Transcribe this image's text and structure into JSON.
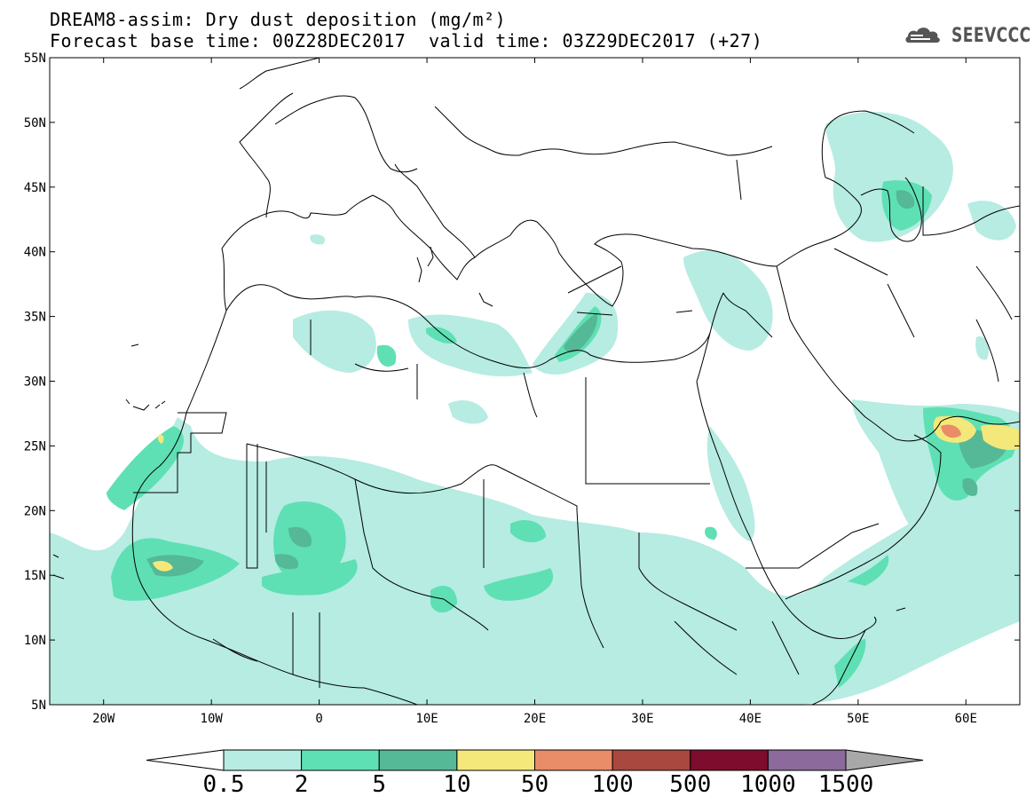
{
  "header": {
    "title_line1": "DREAM8-assim: Dry dust deposition (mg/m²)",
    "title_line2a": "Forecast base time: 00Z28DEC2017",
    "title_line2b": "valid time: 03Z29DEC2017 (+27)",
    "logo_text": "SEEVCCC",
    "logo_icon": "cloud-icon"
  },
  "map": {
    "lon_range": [
      -25,
      65
    ],
    "lat_range": [
      5,
      55
    ],
    "lat_ticks": [
      "55N",
      "50N",
      "45N",
      "40N",
      "35N",
      "30N",
      "25N",
      "20N",
      "15N",
      "10N",
      "5N"
    ],
    "lat_tick_values": [
      55,
      50,
      45,
      40,
      35,
      30,
      25,
      20,
      15,
      10,
      5
    ],
    "lon_ticks": [
      "20W",
      "10W",
      "0",
      "10E",
      "20E",
      "30E",
      "40E",
      "50E",
      "60E"
    ],
    "lon_tick_values": [
      -20,
      -10,
      0,
      10,
      20,
      30,
      40,
      50,
      60
    ]
  },
  "colorbar": {
    "labels": [
      "0.5",
      "2",
      "5",
      "10",
      "50",
      "100",
      "500",
      "1000",
      "1500"
    ],
    "colors": [
      "#b6ece2",
      "#5ee0b4",
      "#55b896",
      "#f4e87a",
      "#e98c68",
      "#a8483e",
      "#7e0c2c",
      "#8c6a9c",
      "#a8a8a8"
    ]
  }
}
